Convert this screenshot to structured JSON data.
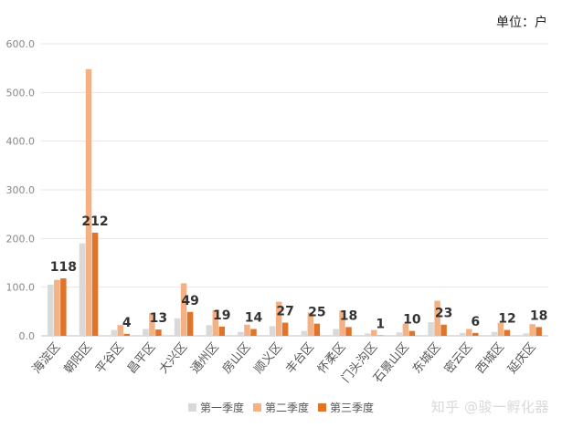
{
  "unit_label": "单位：户",
  "watermark": "知乎 @骏一孵化器",
  "colors": {
    "s1": "#d9d9d9",
    "s2": "#f4b183",
    "s3": "#e0742a",
    "grid": "#e6e6e6",
    "tick": "#888888"
  },
  "chart_data": {
    "type": "bar",
    "title": "",
    "xlabel": "",
    "ylabel": "",
    "ylim": [
      0,
      600
    ],
    "yticks": [
      "0.0",
      "100.0",
      "200.0",
      "300.0",
      "400.0",
      "500.0",
      "600.0"
    ],
    "grid": true,
    "legend": "bottom",
    "categories": [
      "海淀区",
      "朝阳区",
      "平谷区",
      "昌平区",
      "大兴区",
      "通州区",
      "房山区",
      "顺义区",
      "丰台区",
      "怀柔区",
      "门头沟区",
      "石景山区",
      "东城区",
      "密云区",
      "西城区",
      "延庆区"
    ],
    "series": [
      {
        "name": "第一季度",
        "values": [
          105,
          190,
          12,
          14,
          36,
          22,
          8,
          20,
          10,
          14,
          5,
          7,
          28,
          6,
          8,
          5
        ]
      },
      {
        "name": "第二季度",
        "values": [
          115,
          548,
          22,
          47,
          108,
          53,
          23,
          70,
          48,
          52,
          12,
          25,
          72,
          14,
          27,
          24
        ]
      },
      {
        "name": "第三季度",
        "values": [
          118,
          212,
          4,
          13,
          49,
          19,
          14,
          27,
          25,
          18,
          1,
          10,
          23,
          6,
          12,
          18
        ]
      }
    ],
    "data_labels_series": 2
  }
}
